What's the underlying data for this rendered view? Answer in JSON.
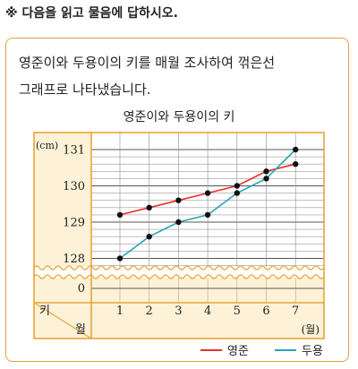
{
  "instruction": "※ 다음을 읽고 물음에 답하시오.",
  "question": {
    "line1": "영준이와 두용이의 키를 매월 조사하여 꺾은선",
    "line2": "그래프로 나타냈습니다."
  },
  "colors": {
    "frame": "#e9a537",
    "panel": "#fdf2d7",
    "youngjun": "#e53030",
    "duyong": "#2aa3b6",
    "grid": "#888888"
  },
  "chart_data": {
    "type": "line",
    "title": "영준이와 두용이의 키",
    "y_unit": "(cm)",
    "x_unit": "(월)",
    "corner_top": "키",
    "corner_bottom": "월",
    "x": [
      1,
      2,
      3,
      4,
      5,
      6,
      7
    ],
    "x_tick_labels": [
      "1",
      "2",
      "3",
      "4",
      "5",
      "6",
      "7"
    ],
    "y_tick_labels": [
      "131",
      "130",
      "129",
      "128"
    ],
    "zero_label": "0",
    "ylim": [
      128,
      131
    ],
    "broken_axis": true,
    "series": [
      {
        "name": "영준",
        "color": "#e53030",
        "values": [
          129.2,
          129.4,
          129.6,
          129.8,
          130.0,
          130.4,
          130.6
        ]
      },
      {
        "name": "두용",
        "color": "#2aa3b6",
        "values": [
          128.0,
          128.6,
          129.0,
          129.2,
          129.8,
          130.2,
          131.0
        ]
      }
    ]
  }
}
